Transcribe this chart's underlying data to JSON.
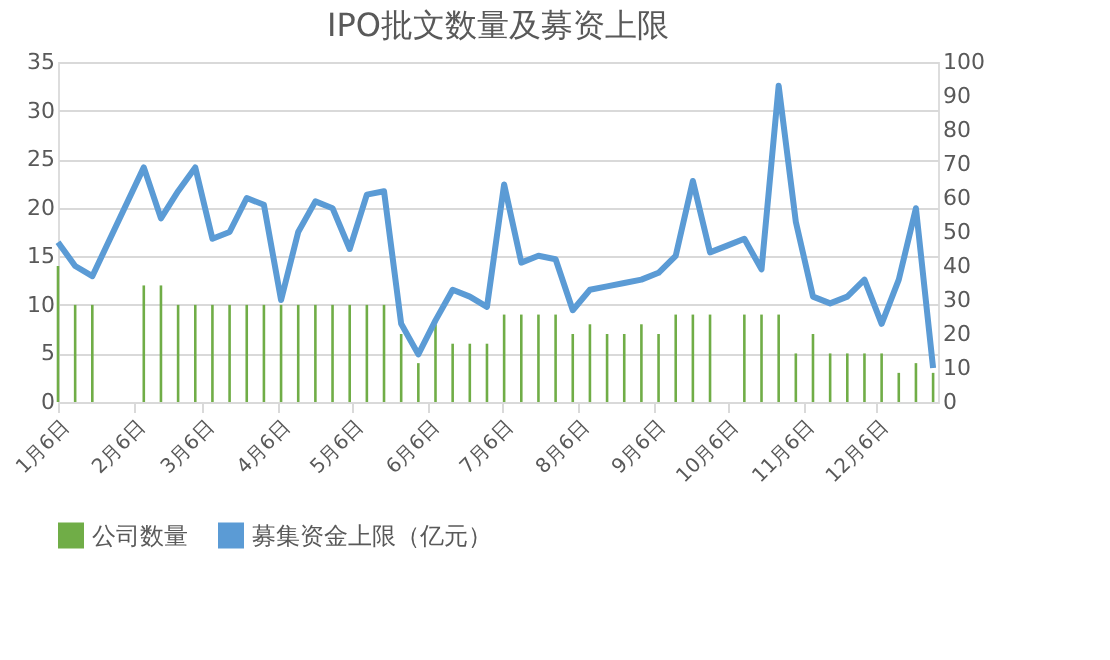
{
  "chart_data": {
    "type": "bar",
    "title": "IPO批文数量及募资上限",
    "x": [
      "--01-06",
      "--01-13",
      "--01-20",
      "--02-10",
      "--02-17",
      "--02-24",
      "--03-03",
      "--03-10",
      "--03-17",
      "--03-24",
      "--03-31",
      "--04-07",
      "--04-14",
      "--04-21",
      "--04-28",
      "--05-05",
      "--05-12",
      "--05-19",
      "--05-26",
      "--06-02",
      "--06-09",
      "--06-16",
      "--06-23",
      "--06-30",
      "--07-07",
      "--07-14",
      "--07-21",
      "--07-28",
      "--08-04",
      "--08-11",
      "--08-18",
      "--08-25",
      "--09-01",
      "--09-08",
      "--09-15",
      "--09-22",
      "--09-29",
      "--10-06",
      "--10-13",
      "--10-20",
      "--10-27",
      "--11-03",
      "--11-10",
      "--11-17",
      "--11-24",
      "--12-01",
      "--12-08",
      "--12-15",
      "--12-22",
      "--12-29"
    ],
    "series": [
      {
        "name": "公司数量",
        "color": "#70ad47",
        "values": [
          14,
          10,
          10,
          12,
          12,
          10,
          10,
          10,
          10,
          10,
          10,
          10,
          10,
          10,
          10,
          10,
          10,
          10,
          7,
          4,
          8,
          6,
          6,
          6,
          9,
          9,
          9,
          9,
          7,
          8,
          7,
          7,
          8,
          7,
          9,
          9,
          9,
          null,
          9,
          9,
          9,
          5,
          7,
          5,
          5,
          5,
          5,
          3,
          4,
          3
        ]
      },
      {
        "name": "募集资金上限（亿元）",
        "type": "line",
        "axis": "y2",
        "color": "#5b9bd5",
        "values": [
          47,
          40,
          37,
          69,
          54,
          62,
          69,
          48,
          50,
          60,
          58,
          30,
          50,
          59,
          57,
          45,
          61,
          62,
          23,
          14,
          24,
          33,
          31,
          28,
          64,
          41,
          43,
          42,
          27,
          33,
          34,
          35,
          36,
          38,
          43,
          65,
          44,
          46,
          48,
          39,
          93,
          53,
          31,
          29,
          31,
          36,
          23,
          36,
          57,
          10
        ]
      }
    ],
    "xlim": [
      "--01-06",
      "--12-31"
    ],
    "xticks": [
      {
        "value": "--01-06",
        "label": "1月6日"
      },
      {
        "value": "--02-06",
        "label": "2月6日"
      },
      {
        "value": "--03-06",
        "label": "3月6日"
      },
      {
        "value": "--04-06",
        "label": "4月6日"
      },
      {
        "value": "--05-06",
        "label": "5月6日"
      },
      {
        "value": "--06-06",
        "label": "6月6日"
      },
      {
        "value": "--07-06",
        "label": "7月6日"
      },
      {
        "value": "--08-06",
        "label": "8月6日"
      },
      {
        "value": "--09-06",
        "label": "9月6日"
      },
      {
        "value": "--10-06",
        "label": "10月6日"
      },
      {
        "value": "--11-06",
        "label": "11月6日"
      },
      {
        "value": "--12-06",
        "label": "12月6日"
      }
    ],
    "ylim": [
      0,
      35
    ],
    "yticks": [
      0,
      5,
      10,
      15,
      20,
      25,
      30,
      35
    ],
    "y2lim": [
      0,
      100
    ],
    "y2ticks": [
      0,
      10,
      20,
      30,
      40,
      50,
      60,
      70,
      80,
      90,
      100
    ],
    "grid": "y",
    "legend": "bottom"
  }
}
